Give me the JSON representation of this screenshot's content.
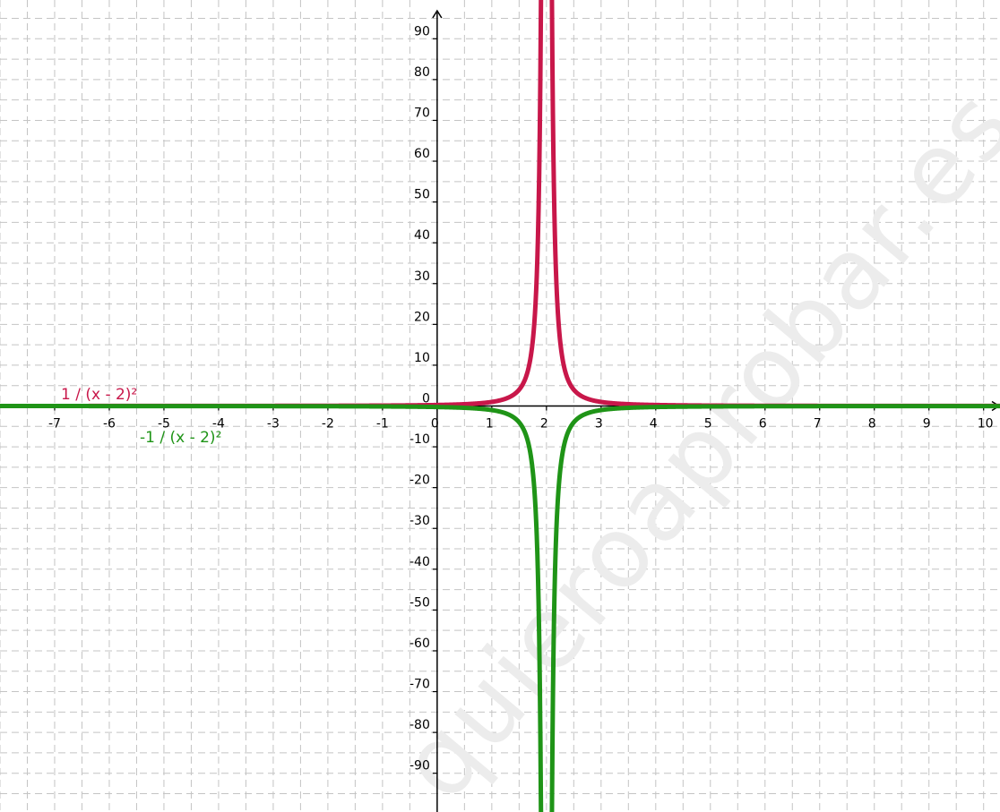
{
  "chart_data": {
    "type": "line",
    "title": "",
    "xlabel": "",
    "ylabel": "",
    "xlim": [
      -8.0,
      10.3
    ],
    "ylim": [
      -99.5,
      99.5
    ],
    "grid": true,
    "x_ticks": [
      -7,
      -6,
      -5,
      -4,
      -3,
      -2,
      -1,
      0,
      1,
      2,
      3,
      4,
      5,
      6,
      7,
      8,
      9,
      10
    ],
    "x_tick_labels": [
      "-7",
      "-6",
      "-5",
      "-4",
      "-3",
      "-2",
      "-1",
      "0",
      "1",
      "2",
      "3",
      "4",
      "5",
      "6",
      "7",
      "8",
      "9",
      "10"
    ],
    "y_ticks": [
      -90,
      -80,
      -70,
      -60,
      -50,
      -40,
      -30,
      -20,
      -10,
      0,
      10,
      20,
      30,
      40,
      50,
      60,
      70,
      80,
      90
    ],
    "y_tick_labels": [
      "-90",
      "-80",
      "-70",
      "-60",
      "-50",
      "-40",
      "-30",
      "-20",
      "-10",
      "0",
      "10",
      "20",
      "30",
      "40",
      "50",
      "60",
      "70",
      "80",
      "90"
    ],
    "series": [
      {
        "name": "1 / (x - 2)²",
        "color": "#c8174a",
        "expression": "1/(x-2)^2",
        "x": [
          -8,
          -6,
          -4,
          -2,
          -1,
          0,
          0.5,
          1,
          1.5,
          1.8,
          1.9,
          2.1,
          2.2,
          2.5,
          3,
          3.5,
          4,
          6,
          8,
          10
        ],
        "y": [
          0.01,
          0.016,
          0.028,
          0.063,
          0.111,
          0.25,
          0.444,
          1,
          4,
          25,
          100,
          100,
          25,
          4,
          1,
          0.444,
          0.25,
          0.063,
          0.028,
          0.016
        ]
      },
      {
        "name": "-1 / (x - 2)²",
        "color": "#1f9417",
        "expression": "-1/(x-2)^2",
        "x": [
          -8,
          -6,
          -4,
          -2,
          -1,
          0,
          0.5,
          1,
          1.5,
          1.8,
          1.9,
          2.1,
          2.2,
          2.5,
          3,
          3.5,
          4,
          6,
          8,
          10
        ],
        "y": [
          -0.01,
          -0.016,
          -0.028,
          -0.063,
          -0.111,
          -0.25,
          -0.444,
          -1,
          -4,
          -25,
          -100,
          -100,
          -25,
          -4,
          -1,
          -0.444,
          -0.25,
          -0.063,
          -0.028,
          -0.016
        ]
      }
    ],
    "watermark": "quieroaprobar.es"
  }
}
